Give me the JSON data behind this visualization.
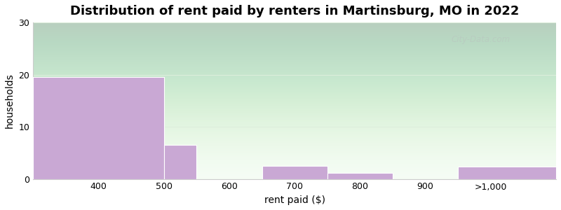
{
  "title": "Distribution of rent paid by renters in Martinsburg, MO in 2022",
  "xlabel": "rent paid ($)",
  "ylabel": "households",
  "bin_edges": [
    300,
    500,
    550,
    650,
    750,
    850,
    950,
    1100
  ],
  "bin_labels": [
    "400",
    "500",
    "600",
    "700",
    "800",
    "900",
    ">1,000"
  ],
  "values": [
    19.5,
    6.5,
    0,
    2.5,
    1.2,
    0,
    2.4
  ],
  "bar_color": "#c9a8d4",
  "bar_edgecolor": "#ffffff",
  "ylim": [
    0,
    30
  ],
  "yticks": [
    0,
    10,
    20,
    30
  ],
  "xlim": [
    300,
    1100
  ],
  "xtick_positions": [
    400,
    500,
    600,
    700,
    800,
    900,
    1000
  ],
  "xtick_labels": [
    "400",
    "500",
    "600",
    "700",
    "800",
    "900",
    ">1,000"
  ],
  "bg_gradient_top": "#e8f5ee",
  "bg_gradient_bottom": "#f8fff8",
  "title_fontsize": 13,
  "axis_label_fontsize": 10,
  "tick_fontsize": 9,
  "figure_facecolor": "#ffffff",
  "watermark_text": "City-Data.com",
  "watermark_color": "#b8c8c0",
  "watermark_alpha": 0.7
}
